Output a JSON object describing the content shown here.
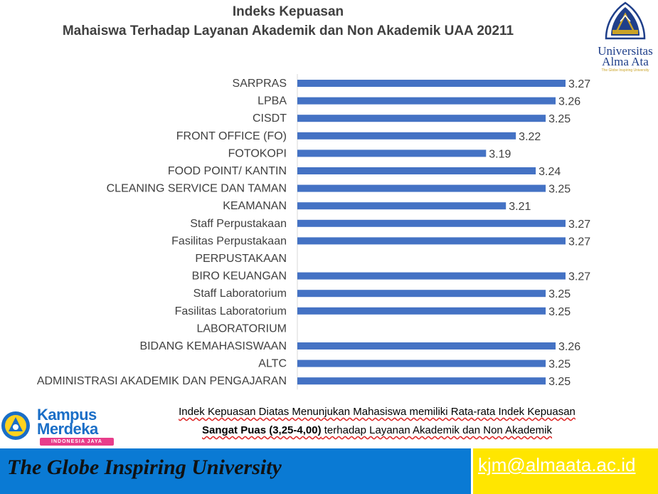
{
  "title": {
    "line1": "Indeks Kepuasan",
    "line2": "Mahaiswa Terhadap Layanan Akademik dan Non Akademik UAA 20211"
  },
  "logo": {
    "name1": "Universitas",
    "name2": "Alma Ata",
    "tagline": "The Globe Inspiring University"
  },
  "chart_data": {
    "type": "bar",
    "orientation": "horizontal",
    "categories": [
      "SARPRAS",
      "LPBA",
      "CISDT",
      "FRONT OFFICE (FO)",
      "FOTOKOPI",
      "FOOD POINT/ KANTIN",
      "CLEANING SERVICE DAN TAMAN",
      "KEAMANAN",
      "Staff Perpustakaan",
      "Fasilitas Perpustakaan ",
      "PERPUSTAKAAN",
      "BIRO KEUANGAN",
      "Staff Laboratorium",
      "Fasilitas Laboratorium",
      "LABORATORIUM",
      "BIDANG KEMAHASISWAAN",
      "ALTC ",
      "ADMINISTRASI AKADEMIK DAN PENGAJARAN"
    ],
    "values": [
      3.27,
      3.26,
      3.25,
      3.22,
      3.19,
      3.24,
      3.25,
      3.21,
      3.27,
      3.27,
      null,
      3.27,
      3.25,
      3.25,
      null,
      3.26,
      3.25,
      3.25
    ],
    "value_labels": [
      "3.27",
      "3.26",
      "3.25",
      "3.22",
      "3.19",
      "3.24",
      "3.25",
      "3.21",
      "3.27",
      "3.27",
      "",
      "3.27",
      "3.25",
      "3.25",
      "",
      "3.26",
      "3.25",
      "3.25"
    ],
    "bar_color": "#4472c4",
    "grid": false,
    "legend": "none"
  },
  "note": {
    "line1": "Indek Kepuasan Diatas Menunjukan Mahasiswa memiliki Rata-rata Indek  Kepuasan",
    "line2_bold": "Sangat Puas (3,25-4,00)",
    "line2_rest": " terhadap Layanan Akademik dan Non Akademik"
  },
  "kampus_merdeka": {
    "line1": "Kampus",
    "line2": "Merdeka",
    "ribbon": "INDONESIA JAYA"
  },
  "footer": {
    "slogan": "The Globe Inspiring University",
    "email": "kjm@almaata.ac.id",
    "blue": "#0a7ad4",
    "yellow": "#ffe600"
  }
}
